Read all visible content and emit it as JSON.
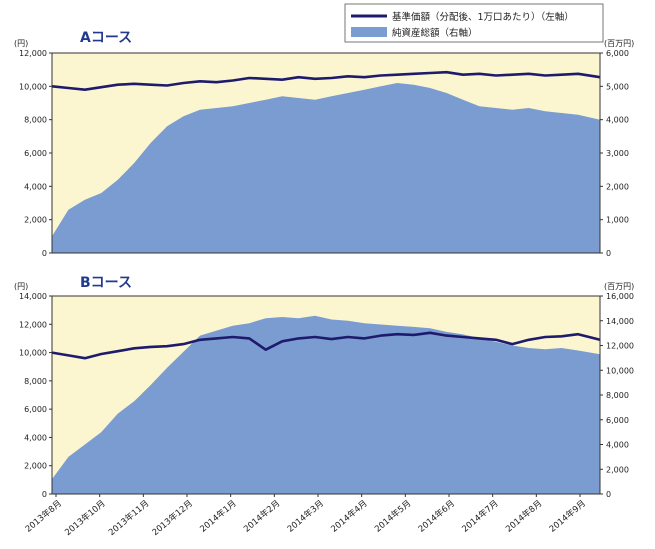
{
  "legend": {
    "nav_label": "基準価額（分配後、1万口あたり）（左軸）",
    "aum_label": "純資産総額（右軸）"
  },
  "colors": {
    "plot_bg": "#fbf6cf",
    "area": "#7b9cd0",
    "line": "#1e1b6e",
    "axis": "#333333",
    "title": "#233a8c"
  },
  "x_tick_labels": [
    "2013年8月",
    "2013年10月",
    "2013年11月",
    "2013年12月",
    "2014年1月",
    "2014年2月",
    "2014年3月",
    "2014年4月",
    "2014年5月",
    "2014年6月",
    "2014年7月",
    "2014年8月",
    "2014年9月"
  ],
  "chart_data": [
    {
      "type": "area",
      "title": "Aコース",
      "left_unit": "(円)",
      "right_unit": "(百万円)",
      "ylim_left": [
        0,
        12000
      ],
      "ylim_right": [
        0,
        6000
      ],
      "yticks_left": [
        "0",
        "2,000",
        "4,000",
        "6,000",
        "8,000",
        "10,000",
        "12,000"
      ],
      "yticks_right": [
        "0",
        "1,000",
        "2,000",
        "3,000",
        "4,000",
        "5,000",
        "6,000"
      ],
      "t": [
        0,
        0.03,
        0.06,
        0.09,
        0.12,
        0.15,
        0.18,
        0.21,
        0.24,
        0.27,
        0.3,
        0.33,
        0.36,
        0.39,
        0.42,
        0.45,
        0.48,
        0.51,
        0.54,
        0.57,
        0.6,
        0.63,
        0.66,
        0.69,
        0.72,
        0.75,
        0.78,
        0.81,
        0.84,
        0.87,
        0.9,
        0.93,
        0.96,
        1.0
      ],
      "series": [
        {
          "name": "基準価額（分配後、1万口あたり）（左軸）",
          "axis": "left",
          "values": [
            10000,
            9900,
            9800,
            9950,
            10100,
            10150,
            10100,
            10050,
            10200,
            10300,
            10250,
            10350,
            10500,
            10450,
            10400,
            10550,
            10450,
            10500,
            10600,
            10550,
            10650,
            10700,
            10750,
            10800,
            10850,
            10700,
            10750,
            10650,
            10700,
            10750,
            10650,
            10700,
            10750,
            10550
          ]
        },
        {
          "name": "純資産総額（右軸）",
          "axis": "right",
          "values": [
            500,
            1300,
            1600,
            1800,
            2200,
            2700,
            3300,
            3800,
            4100,
            4300,
            4350,
            4400,
            4500,
            4600,
            4700,
            4650,
            4600,
            4700,
            4800,
            4900,
            5000,
            5100,
            5050,
            4950,
            4800,
            4600,
            4400,
            4350,
            4300,
            4350,
            4250,
            4200,
            4150,
            4000
          ]
        }
      ]
    },
    {
      "type": "area",
      "title": "Bコース",
      "left_unit": "(円)",
      "right_unit": "(百万円)",
      "ylim_left": [
        0,
        14000
      ],
      "ylim_right": [
        0,
        16000
      ],
      "yticks_left": [
        "0",
        "2,000",
        "4,000",
        "6,000",
        "8,000",
        "10,000",
        "12,000",
        "14,000"
      ],
      "yticks_right": [
        "0",
        "2,000",
        "4,000",
        "6,000",
        "8,000",
        "10,000",
        "12,000",
        "14,000",
        "16,000"
      ],
      "t": [
        0,
        0.03,
        0.06,
        0.09,
        0.12,
        0.15,
        0.18,
        0.21,
        0.24,
        0.27,
        0.3,
        0.33,
        0.36,
        0.39,
        0.42,
        0.45,
        0.48,
        0.51,
        0.54,
        0.57,
        0.6,
        0.63,
        0.66,
        0.69,
        0.72,
        0.75,
        0.78,
        0.81,
        0.84,
        0.87,
        0.9,
        0.93,
        0.96,
        1.0
      ],
      "series": [
        {
          "name": "基準価額（分配後、1万口あたり）（左軸）",
          "axis": "left",
          "values": [
            10000,
            9800,
            9600,
            9900,
            10100,
            10300,
            10400,
            10450,
            10600,
            10900,
            11000,
            11100,
            11000,
            10200,
            10800,
            11000,
            11100,
            10950,
            11100,
            11000,
            11200,
            11300,
            11250,
            11400,
            11200,
            11100,
            11000,
            10900,
            10600,
            10900,
            11100,
            11150,
            11300,
            10900
          ]
        },
        {
          "name": "純資産総額（右軸）",
          "axis": "right",
          "values": [
            1200,
            3000,
            4000,
            5000,
            6500,
            7500,
            8800,
            10200,
            11500,
            12800,
            13200,
            13600,
            13800,
            14200,
            14300,
            14200,
            14400,
            14100,
            14000,
            13800,
            13700,
            13600,
            13500,
            13400,
            13100,
            12900,
            12600,
            12300,
            12000,
            11800,
            11700,
            11800,
            11600,
            11300
          ]
        }
      ]
    }
  ]
}
